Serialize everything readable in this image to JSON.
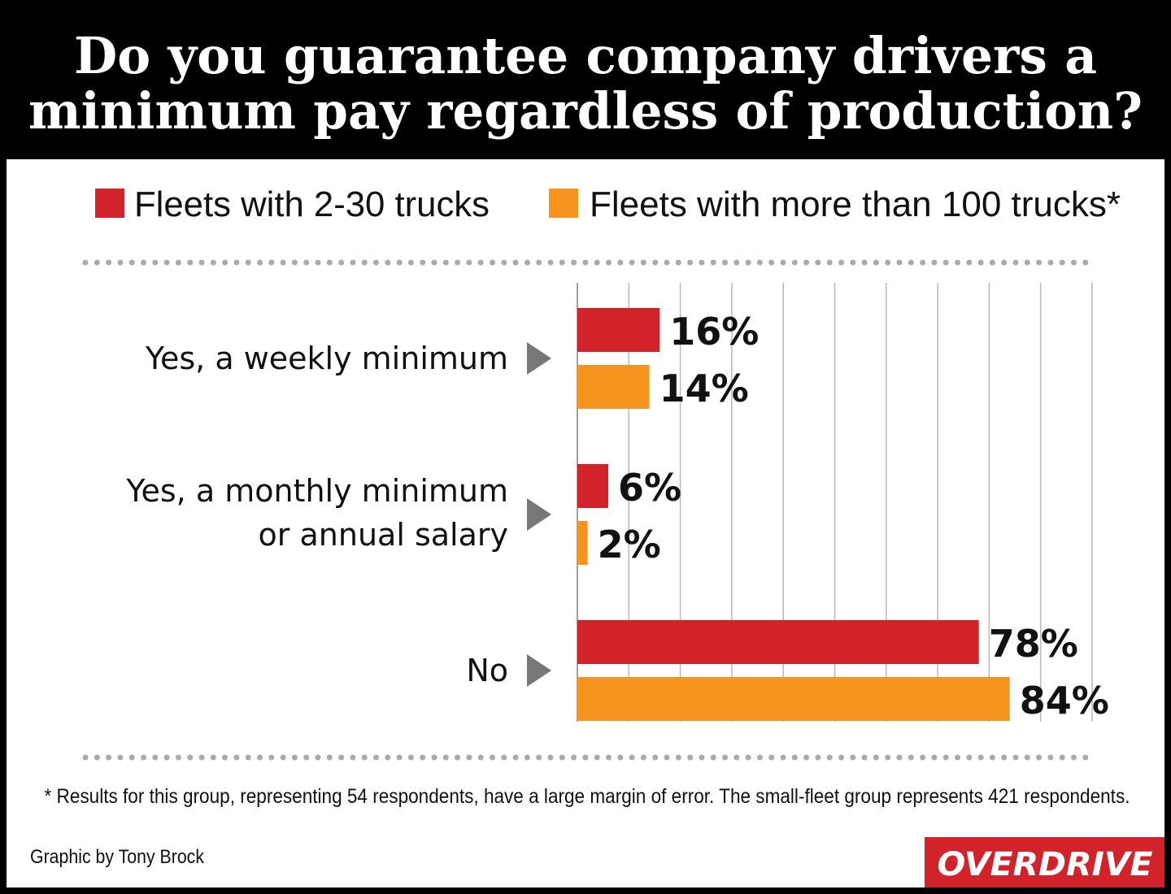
{
  "chart_data": {
    "type": "bar",
    "title": "Do you guarantee company drivers a\nminimum pay regardless of production?",
    "categories": [
      "Yes, a weekly minimum",
      "Yes, a monthly minimum\nor annual salary",
      "No"
    ],
    "series": [
      {
        "name": "Fleets with 2-30 trucks",
        "color": "#d2232a",
        "values": [
          16,
          6,
          78
        ],
        "value_labels": [
          "16%",
          "6%",
          "78%"
        ]
      },
      {
        "name": "Fleets with more than 100 trucks*",
        "color": "#f7941d",
        "values": [
          14,
          2,
          84
        ],
        "value_labels": [
          "14%",
          "2%",
          "84%"
        ]
      }
    ],
    "xlim": [
      0,
      100
    ],
    "xticks": [
      0,
      10,
      20,
      30,
      40,
      50,
      60,
      70,
      80,
      90,
      100
    ],
    "grid": true,
    "footnote": "* Results for this group, representing 54 respondents, have a large margin of error. The small-fleet group represents 421 respondents.",
    "credit": "Graphic by Tony Brock",
    "logo": "OVERDRIVE"
  }
}
